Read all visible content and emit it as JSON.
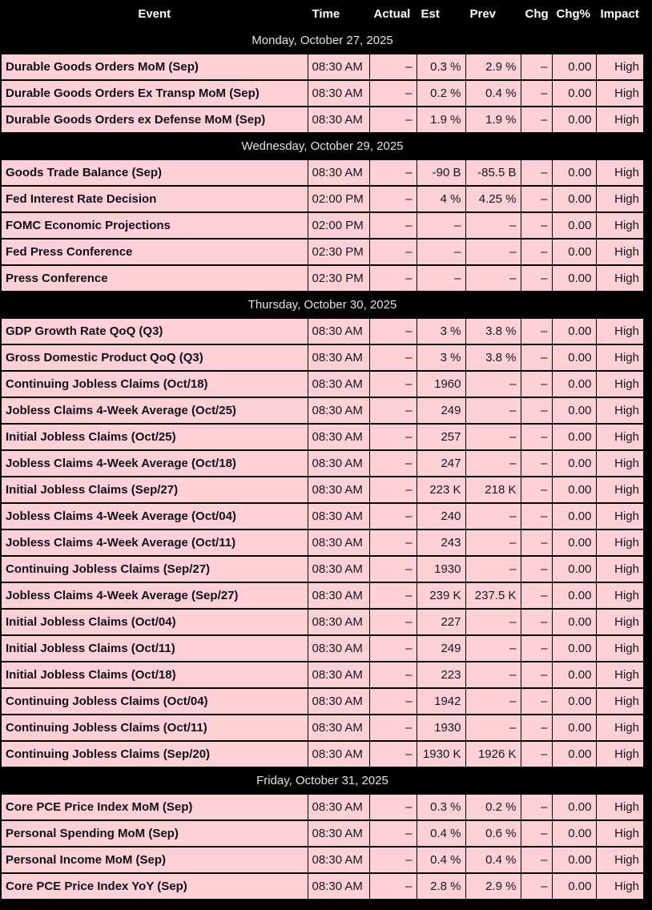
{
  "colors": {
    "page_background": "#000000",
    "row_background": "#ffd1d7",
    "separator_background": "#000000",
    "header_text": "#ffffff",
    "date_text": "#e3e3e3",
    "event_text": "#10101c",
    "value_text": "#15151f",
    "border": "#000000"
  },
  "table": {
    "columns": [
      "Event",
      "Time",
      "Actual",
      "Est",
      "Prev",
      "Chg",
      "Chg%",
      "Impact"
    ],
    "sections": [
      {
        "date": "Monday, October 27, 2025",
        "rows": [
          {
            "event": "Durable Goods Orders MoM (Sep)",
            "time": "08:30 AM",
            "actual": "–",
            "est": "0.3 %",
            "prev": "2.9 %",
            "chg": "–",
            "chg_pct": "0.00",
            "impact": "High"
          },
          {
            "event": "Durable Goods Orders Ex Transp MoM (Sep)",
            "time": "08:30 AM",
            "actual": "–",
            "est": "0.2 %",
            "prev": "0.4 %",
            "chg": "–",
            "chg_pct": "0.00",
            "impact": "High"
          },
          {
            "event": "Durable Goods Orders ex Defense MoM (Sep)",
            "time": "08:30 AM",
            "actual": "–",
            "est": "1.9 %",
            "prev": "1.9 %",
            "chg": "–",
            "chg_pct": "0.00",
            "impact": "High"
          }
        ]
      },
      {
        "date": "Wednesday, October 29, 2025",
        "rows": [
          {
            "event": "Goods Trade Balance (Sep)",
            "time": "08:30 AM",
            "actual": "–",
            "est": "-90 B",
            "prev": "-85.5 B",
            "chg": "–",
            "chg_pct": "0.00",
            "impact": "High"
          },
          {
            "event": "Fed Interest Rate Decision",
            "time": "02:00 PM",
            "actual": "–",
            "est": "4 %",
            "prev": "4.25 %",
            "chg": "–",
            "chg_pct": "0.00",
            "impact": "High"
          },
          {
            "event": "FOMC Economic Projections",
            "time": "02:00 PM",
            "actual": "–",
            "est": "–",
            "prev": "–",
            "chg": "–",
            "chg_pct": "0.00",
            "impact": "High"
          },
          {
            "event": "Fed Press Conference",
            "time": "02:30 PM",
            "actual": "–",
            "est": "–",
            "prev": "–",
            "chg": "–",
            "chg_pct": "0.00",
            "impact": "High"
          },
          {
            "event": "Press Conference",
            "time": "02:30 PM",
            "actual": "–",
            "est": "–",
            "prev": "–",
            "chg": "–",
            "chg_pct": "0.00",
            "impact": "High"
          }
        ]
      },
      {
        "date": "Thursday, October 30, 2025",
        "rows": [
          {
            "event": "GDP Growth Rate QoQ (Q3)",
            "time": "08:30 AM",
            "actual": "–",
            "est": "3 %",
            "prev": "3.8 %",
            "chg": "–",
            "chg_pct": "0.00",
            "impact": "High"
          },
          {
            "event": "Gross Domestic Product QoQ (Q3)",
            "time": "08:30 AM",
            "actual": "–",
            "est": "3 %",
            "prev": "3.8 %",
            "chg": "–",
            "chg_pct": "0.00",
            "impact": "High"
          },
          {
            "event": "Continuing Jobless Claims (Oct/18)",
            "time": "08:30 AM",
            "actual": "–",
            "est": "1960",
            "prev": "–",
            "chg": "–",
            "chg_pct": "0.00",
            "impact": "High"
          },
          {
            "event": "Jobless Claims 4-Week Average (Oct/25)",
            "time": "08:30 AM",
            "actual": "–",
            "est": "249",
            "prev": "–",
            "chg": "–",
            "chg_pct": "0.00",
            "impact": "High"
          },
          {
            "event": "Initial Jobless Claims (Oct/25)",
            "time": "08:30 AM",
            "actual": "–",
            "est": "257",
            "prev": "–",
            "chg": "–",
            "chg_pct": "0.00",
            "impact": "High"
          },
          {
            "event": "Jobless Claims 4-Week Average (Oct/18)",
            "time": "08:30 AM",
            "actual": "–",
            "est": "247",
            "prev": "–",
            "chg": "–",
            "chg_pct": "0.00",
            "impact": "High"
          },
          {
            "event": "Initial Jobless Claims (Sep/27)",
            "time": "08:30 AM",
            "actual": "–",
            "est": "223 K",
            "prev": "218 K",
            "chg": "–",
            "chg_pct": "0.00",
            "impact": "High"
          },
          {
            "event": "Jobless Claims 4-Week Average (Oct/04)",
            "time": "08:30 AM",
            "actual": "–",
            "est": "240",
            "prev": "–",
            "chg": "–",
            "chg_pct": "0.00",
            "impact": "High"
          },
          {
            "event": "Jobless Claims 4-Week Average (Oct/11)",
            "time": "08:30 AM",
            "actual": "–",
            "est": "243",
            "prev": "–",
            "chg": "–",
            "chg_pct": "0.00",
            "impact": "High"
          },
          {
            "event": "Continuing Jobless Claims (Sep/27)",
            "time": "08:30 AM",
            "actual": "–",
            "est": "1930",
            "prev": "–",
            "chg": "–",
            "chg_pct": "0.00",
            "impact": "High"
          },
          {
            "event": "Jobless Claims 4-Week Average (Sep/27)",
            "time": "08:30 AM",
            "actual": "–",
            "est": "239 K",
            "prev": "237.5 K",
            "chg": "–",
            "chg_pct": "0.00",
            "impact": "High"
          },
          {
            "event": "Initial Jobless Claims (Oct/04)",
            "time": "08:30 AM",
            "actual": "–",
            "est": "227",
            "prev": "–",
            "chg": "–",
            "chg_pct": "0.00",
            "impact": "High"
          },
          {
            "event": "Initial Jobless Claims (Oct/11)",
            "time": "08:30 AM",
            "actual": "–",
            "est": "249",
            "prev": "–",
            "chg": "–",
            "chg_pct": "0.00",
            "impact": "High"
          },
          {
            "event": "Initial Jobless Claims (Oct/18)",
            "time": "08:30 AM",
            "actual": "–",
            "est": "223",
            "prev": "–",
            "chg": "–",
            "chg_pct": "0.00",
            "impact": "High"
          },
          {
            "event": "Continuing Jobless Claims (Oct/04)",
            "time": "08:30 AM",
            "actual": "–",
            "est": "1942",
            "prev": "–",
            "chg": "–",
            "chg_pct": "0.00",
            "impact": "High"
          },
          {
            "event": "Continuing Jobless Claims (Oct/11)",
            "time": "08:30 AM",
            "actual": "–",
            "est": "1930",
            "prev": "–",
            "chg": "–",
            "chg_pct": "0.00",
            "impact": "High"
          },
          {
            "event": "Continuing Jobless Claims (Sep/20)",
            "time": "08:30 AM",
            "actual": "–",
            "est": "1930 K",
            "prev": "1926 K",
            "chg": "–",
            "chg_pct": "0.00",
            "impact": "High"
          }
        ]
      },
      {
        "date": "Friday, October 31, 2025",
        "rows": [
          {
            "event": "Core PCE Price Index MoM (Sep)",
            "time": "08:30 AM",
            "actual": "–",
            "est": "0.3 %",
            "prev": "0.2 %",
            "chg": "–",
            "chg_pct": "0.00",
            "impact": "High"
          },
          {
            "event": "Personal Spending MoM (Sep)",
            "time": "08:30 AM",
            "actual": "–",
            "est": "0.4 %",
            "prev": "0.6 %",
            "chg": "–",
            "chg_pct": "0.00",
            "impact": "High"
          },
          {
            "event": "Personal Income MoM (Sep)",
            "time": "08:30 AM",
            "actual": "–",
            "est": "0.4 %",
            "prev": "0.4 %",
            "chg": "–",
            "chg_pct": "0.00",
            "impact": "High"
          },
          {
            "event": "Core PCE Price Index YoY (Sep)",
            "time": "08:30 AM",
            "actual": "–",
            "est": "2.8 %",
            "prev": "2.9 %",
            "chg": "–",
            "chg_pct": "0.00",
            "impact": "High"
          }
        ]
      }
    ]
  }
}
